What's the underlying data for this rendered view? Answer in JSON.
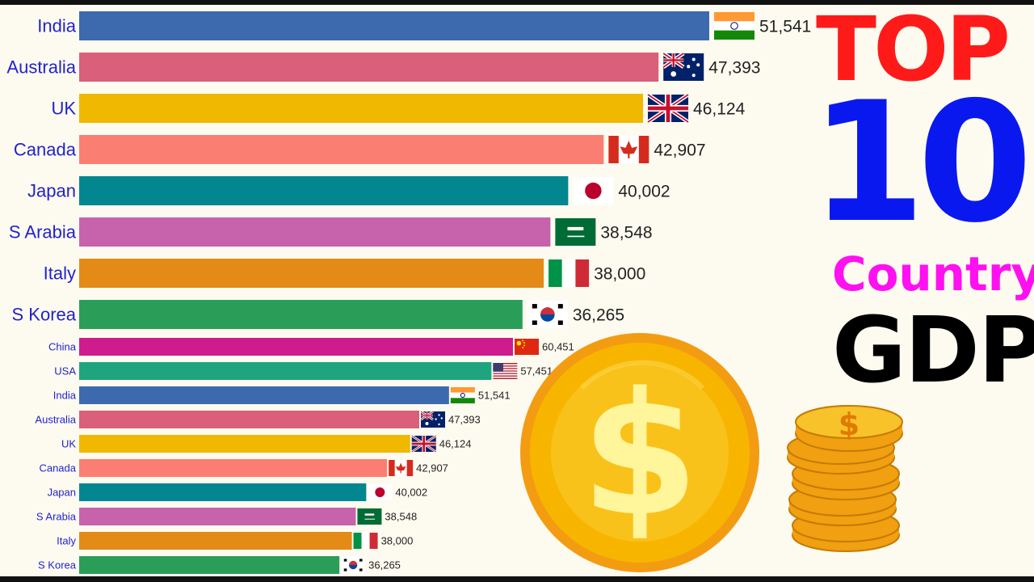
{
  "headline": {
    "top": "TOP",
    "ten": "10",
    "country": "Country",
    "gdp": "GDP"
  },
  "illustration": {
    "coin_symbol": "$",
    "stack_symbol": "$"
  },
  "colors": {
    "background": "#fdfbf0",
    "label_text": "#2222cc",
    "top_red": "#ff1a1a",
    "ten_blue": "#0a18f0",
    "country_magenta": "#ff10f0",
    "gdp_black": "#000000",
    "coin_gold": "#f7b500"
  },
  "chart_data": [
    {
      "type": "bar",
      "orientation": "horizontal",
      "categories": [
        "India",
        "Australia",
        "UK",
        "Canada",
        "Japan",
        "S Arabia",
        "Italy",
        "S Korea"
      ],
      "values": [
        51541,
        47393,
        46124,
        42907,
        40002,
        38548,
        38000,
        36265
      ],
      "value_labels": [
        "51,541",
        "47,393",
        "46,124",
        "42,907",
        "40,002",
        "38,548",
        "38,000",
        "36,265"
      ],
      "flags": [
        "india",
        "australia",
        "uk",
        "canada",
        "japan",
        "saudi-arabia",
        "italy",
        "south-korea"
      ],
      "colors": [
        "#3d6aae",
        "#d95f7a",
        "#f0b800",
        "#fa7f72",
        "#02868f",
        "#c762ad",
        "#e48a17",
        "#2a9e58"
      ],
      "xlim": [
        0,
        51541
      ],
      "grid": false,
      "legend": "none"
    },
    {
      "type": "bar",
      "orientation": "horizontal",
      "categories": [
        "China",
        "USA",
        "India",
        "Australia",
        "UK",
        "Canada",
        "Japan",
        "S Arabia",
        "Italy",
        "S Korea"
      ],
      "values": [
        60451,
        57451,
        51541,
        47393,
        46124,
        42907,
        40002,
        38548,
        38000,
        36265
      ],
      "value_labels": [
        "60,451",
        "57,451",
        "51,541",
        "47,393",
        "46,124",
        "42,907",
        "40,002",
        "38,548",
        "38,000",
        "36,265"
      ],
      "flags": [
        "china",
        "usa",
        "india",
        "australia",
        "uk",
        "canada",
        "japan",
        "saudi-arabia",
        "italy",
        "south-korea"
      ],
      "colors": [
        "#ce1c8e",
        "#1fa57e",
        "#3d6aae",
        "#d95f7a",
        "#f0b800",
        "#fa7f72",
        "#02868f",
        "#c762ad",
        "#e48a17",
        "#2a9e58"
      ],
      "xlim": [
        0,
        60451
      ],
      "grid": false,
      "legend": "none"
    }
  ]
}
